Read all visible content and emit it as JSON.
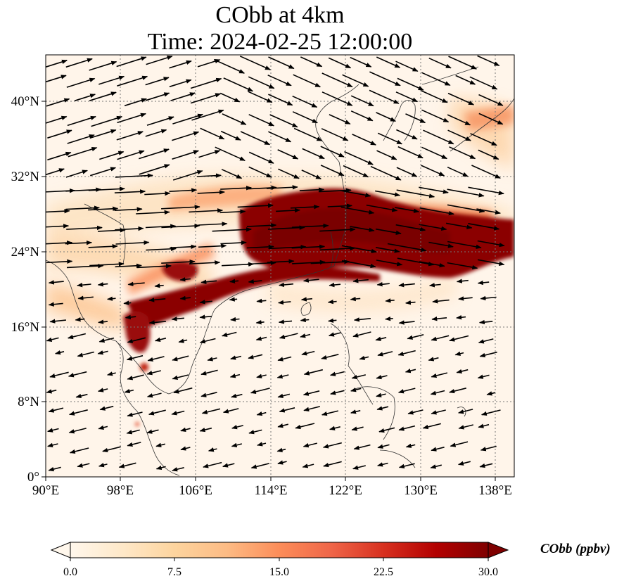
{
  "title": {
    "line1": "CObb at 4km",
    "line2": "Time: 2024-02-25 12:00:00"
  },
  "map": {
    "lon_range": [
      90,
      140
    ],
    "lat_range": [
      0,
      45
    ],
    "lon_ticks": [
      "90°E",
      "98°E",
      "106°E",
      "114°E",
      "122°E",
      "130°E",
      "138°E"
    ],
    "lat_ticks": [
      "0°",
      "8°N",
      "16°N",
      "24°N",
      "32°N",
      "40°N"
    ],
    "colormap": "OrRd",
    "colors": {
      "low": "#fff7ec",
      "mid": "#fc8d59",
      "high": "#7f0000",
      "coastline": "#333333",
      "gridline": "#777777",
      "wind_vectors": "#000000"
    }
  },
  "colorbar": {
    "label": "CObb (ppbv)",
    "ticks": [
      "0.0",
      "7.5",
      "15.0",
      "22.5",
      "30.0"
    ],
    "range": [
      0,
      30
    ],
    "extend": "both"
  }
}
